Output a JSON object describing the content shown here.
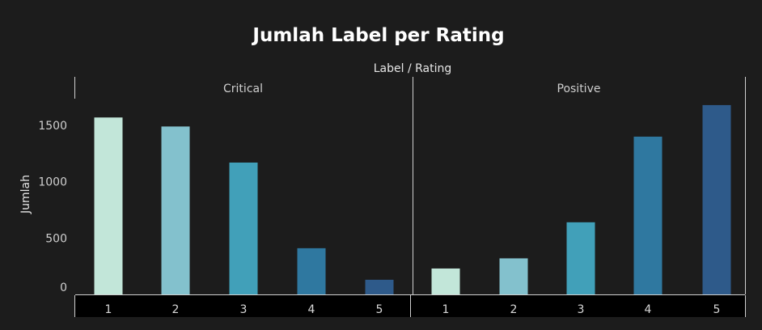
{
  "chart_data": {
    "type": "bar",
    "title": "Jumlah Label per Rating",
    "column_header": "Label / Rating",
    "ylabel": "Jumlah",
    "ylim": [
      0,
      1750
    ],
    "yticks": [
      "0",
      "500",
      "1000",
      "1500"
    ],
    "panes": [
      {
        "name": "Critical",
        "categories": [
          "1",
          "2",
          "3",
          "4",
          "5"
        ],
        "values": [
          1570,
          1490,
          1170,
          410,
          130
        ]
      },
      {
        "name": "Positive",
        "categories": [
          "1",
          "2",
          "3",
          "4",
          "5"
        ],
        "values": [
          230,
          320,
          640,
          1400,
          1680
        ]
      }
    ],
    "colors": {
      "1": "#c2e6d9",
      "2": "#83c1cd",
      "3": "#41a0b9",
      "4": "#2f78a0",
      "5": "#2e5a8a"
    },
    "background": "#1c1c1c",
    "grid": false
  }
}
